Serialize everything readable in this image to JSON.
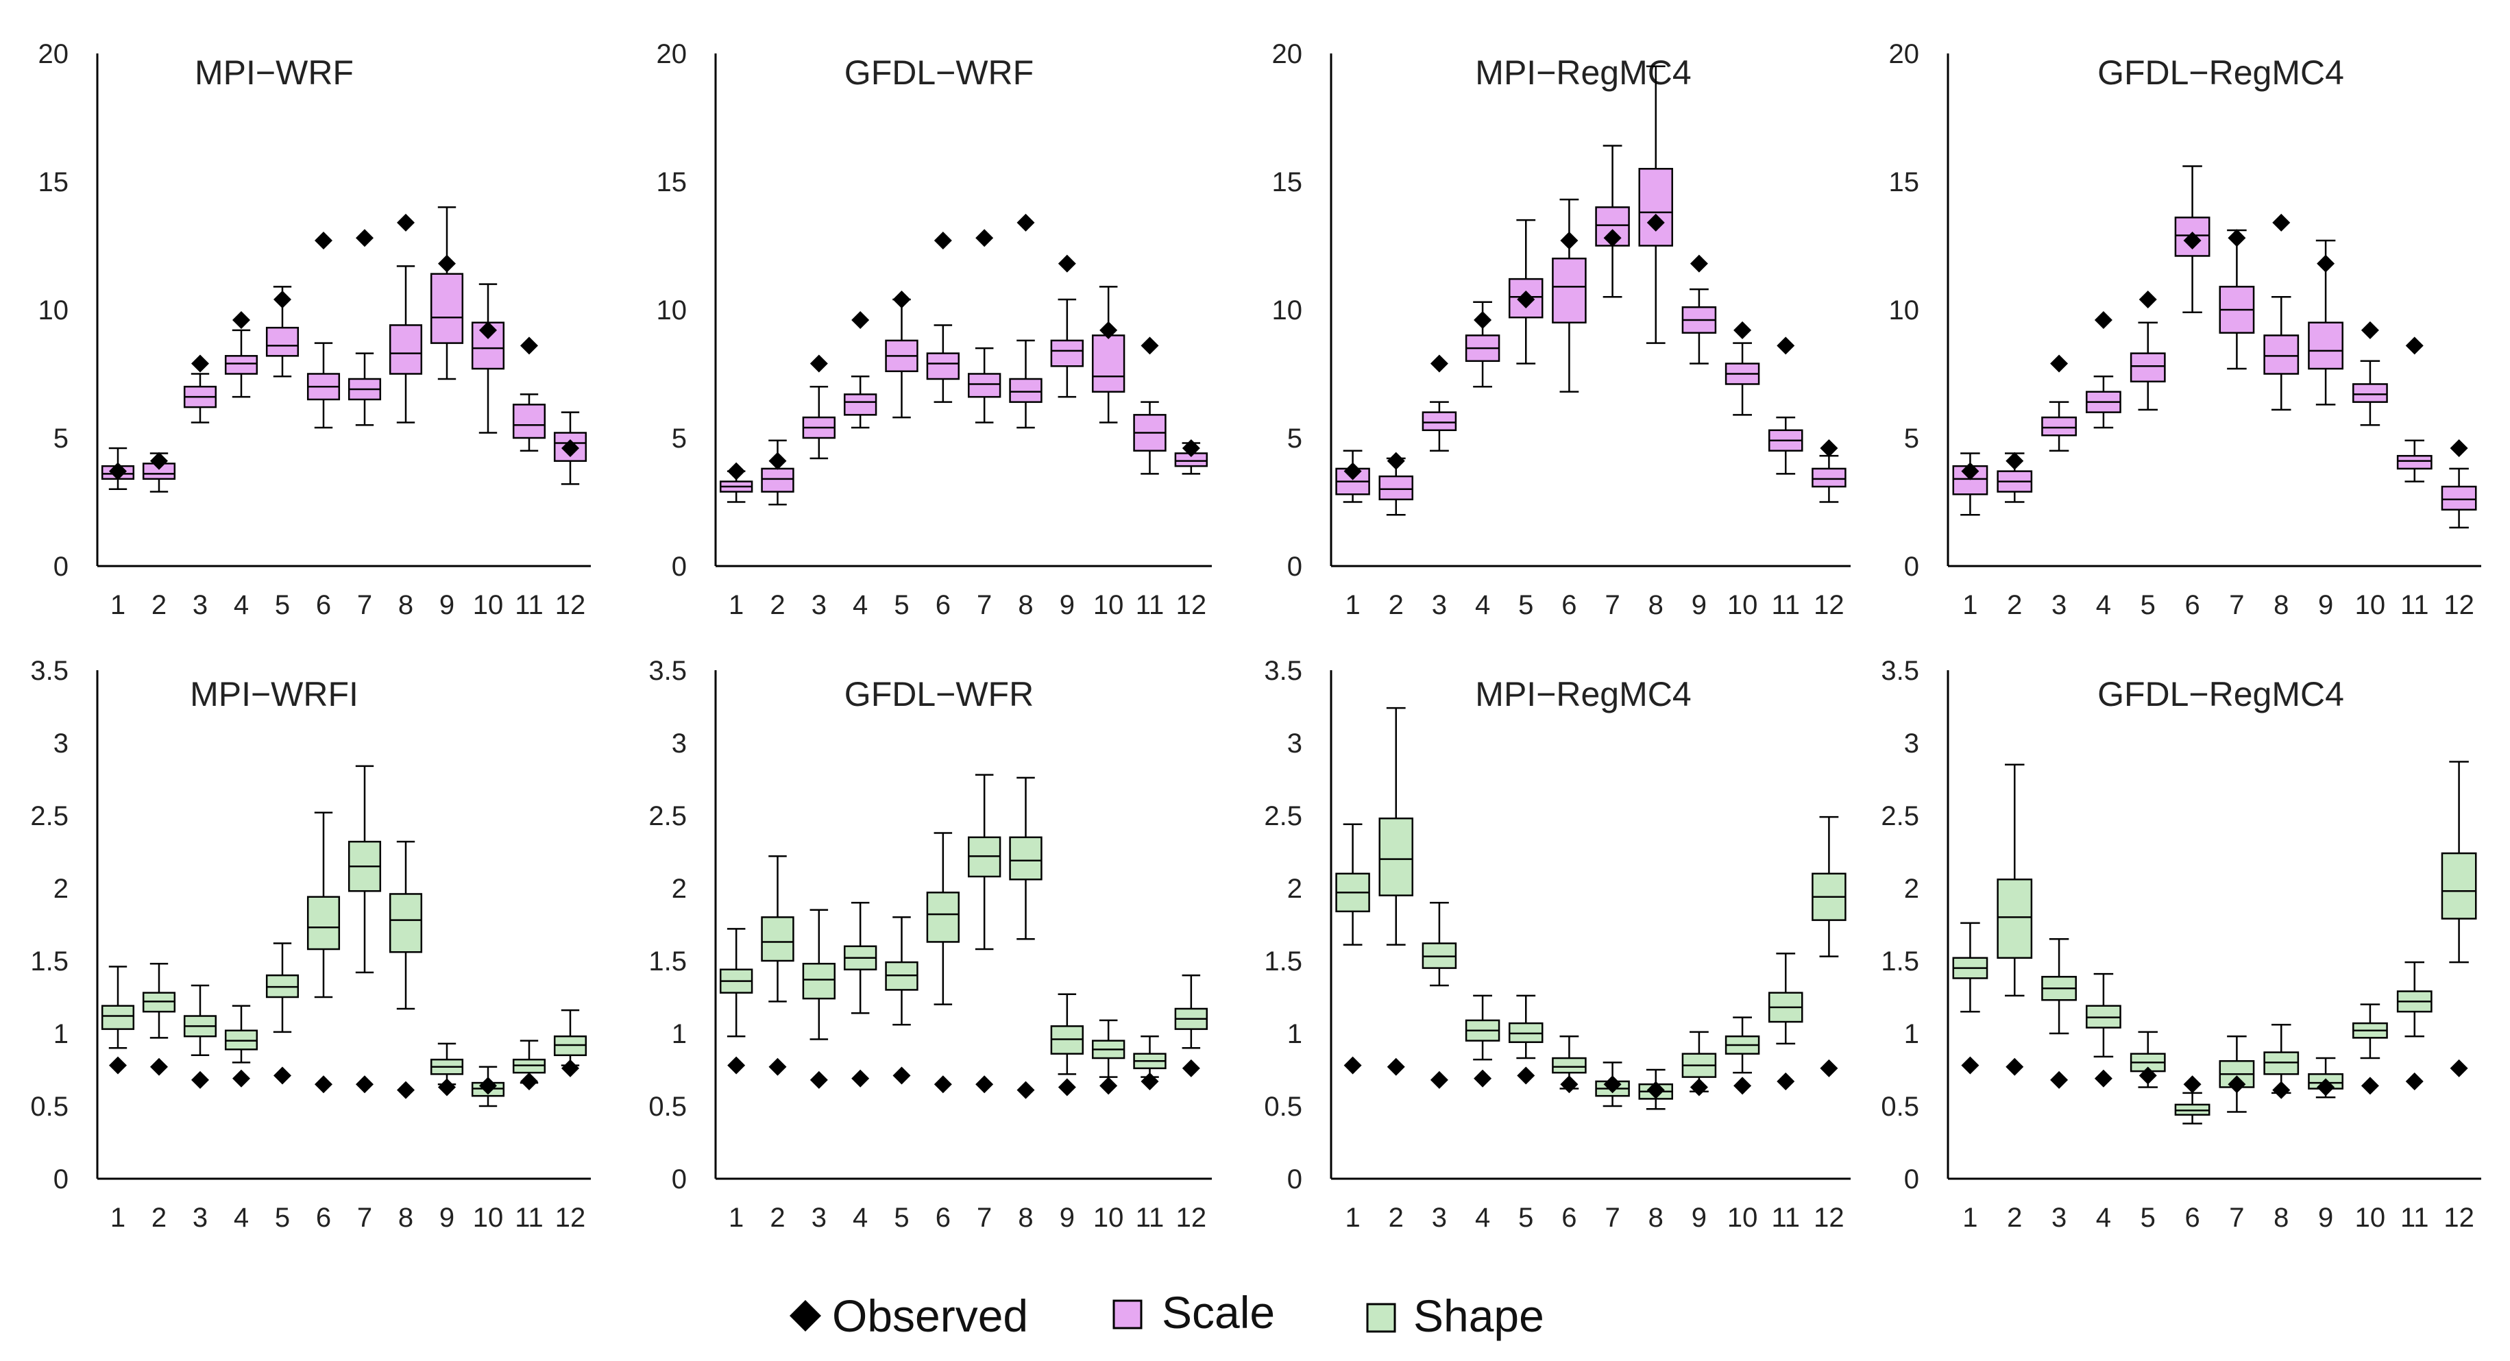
{
  "legend": {
    "observed": "Observed",
    "scale": "Scale",
    "shape": "Shape"
  },
  "colors": {
    "scale_fill": "#e6a8f2",
    "shape_fill": "#c6e8c3",
    "observed": "#000000",
    "axis": "#000000"
  },
  "chart_data": [
    {
      "type": "boxplot",
      "title": "MPI−WRF",
      "parameter": "scale",
      "categories": [
        "1",
        "2",
        "3",
        "4",
        "5",
        "6",
        "7",
        "8",
        "9",
        "10",
        "11",
        "12"
      ],
      "ylim": [
        0,
        20
      ],
      "yticks": [
        "0",
        "5",
        "10",
        "15",
        "20"
      ],
      "boxes": [
        {
          "min": 3.0,
          "q1": 3.4,
          "median": 3.6,
          "q3": 3.9,
          "max": 4.6
        },
        {
          "min": 2.9,
          "q1": 3.4,
          "median": 3.6,
          "q3": 4.0,
          "max": 4.4
        },
        {
          "min": 5.6,
          "q1": 6.2,
          "median": 6.6,
          "q3": 7.0,
          "max": 7.5
        },
        {
          "min": 6.6,
          "q1": 7.5,
          "median": 7.9,
          "q3": 8.2,
          "max": 9.2
        },
        {
          "min": 7.4,
          "q1": 8.2,
          "median": 8.6,
          "q3": 9.3,
          "max": 10.9
        },
        {
          "min": 5.4,
          "q1": 6.5,
          "median": 7.0,
          "q3": 7.5,
          "max": 8.7
        },
        {
          "min": 5.5,
          "q1": 6.5,
          "median": 6.9,
          "q3": 7.3,
          "max": 8.3
        },
        {
          "min": 5.6,
          "q1": 7.5,
          "median": 8.3,
          "q3": 9.4,
          "max": 11.7
        },
        {
          "min": 7.3,
          "q1": 8.7,
          "median": 9.7,
          "q3": 11.4,
          "max": 14.0
        },
        {
          "min": 5.2,
          "q1": 7.7,
          "median": 8.5,
          "q3": 9.5,
          "max": 11.0
        },
        {
          "min": 4.5,
          "q1": 5.0,
          "median": 5.5,
          "q3": 6.3,
          "max": 6.7
        },
        {
          "min": 3.2,
          "q1": 4.1,
          "median": 4.8,
          "q3": 5.2,
          "max": 6.0
        }
      ],
      "observed": [
        3.7,
        4.1,
        7.9,
        9.6,
        10.4,
        12.7,
        12.8,
        13.4,
        11.8,
        9.2,
        8.6,
        4.6
      ]
    },
    {
      "type": "boxplot",
      "title": "GFDL−WRF",
      "parameter": "scale",
      "categories": [
        "1",
        "2",
        "3",
        "4",
        "5",
        "6",
        "7",
        "8",
        "9",
        "10",
        "11",
        "12"
      ],
      "ylim": [
        0,
        20
      ],
      "yticks": [
        "0",
        "5",
        "10",
        "15",
        "20"
      ],
      "boxes": [
        {
          "min": 2.5,
          "q1": 2.9,
          "median": 3.1,
          "q3": 3.3,
          "max": 3.7
        },
        {
          "min": 2.4,
          "q1": 2.9,
          "median": 3.4,
          "q3": 3.8,
          "max": 4.9
        },
        {
          "min": 4.2,
          "q1": 5.0,
          "median": 5.4,
          "q3": 5.8,
          "max": 7.0
        },
        {
          "min": 5.4,
          "q1": 5.9,
          "median": 6.4,
          "q3": 6.7,
          "max": 7.4
        },
        {
          "min": 5.8,
          "q1": 7.6,
          "median": 8.2,
          "q3": 8.8,
          "max": 10.4
        },
        {
          "min": 6.4,
          "q1": 7.3,
          "median": 7.9,
          "q3": 8.3,
          "max": 9.4
        },
        {
          "min": 5.6,
          "q1": 6.6,
          "median": 7.1,
          "q3": 7.5,
          "max": 8.5
        },
        {
          "min": 5.4,
          "q1": 6.4,
          "median": 6.8,
          "q3": 7.3,
          "max": 8.8
        },
        {
          "min": 6.6,
          "q1": 7.8,
          "median": 8.4,
          "q3": 8.8,
          "max": 10.4
        },
        {
          "min": 5.6,
          "q1": 6.8,
          "median": 7.4,
          "q3": 9.0,
          "max": 10.9
        },
        {
          "min": 3.6,
          "q1": 4.5,
          "median": 5.2,
          "q3": 5.9,
          "max": 6.4
        },
        {
          "min": 3.6,
          "q1": 3.9,
          "median": 4.1,
          "q3": 4.4,
          "max": 4.8
        }
      ],
      "observed": [
        3.7,
        4.1,
        7.9,
        9.6,
        10.4,
        12.7,
        12.8,
        13.4,
        11.8,
        9.2,
        8.6,
        4.6
      ]
    },
    {
      "type": "boxplot",
      "title": "MPI−RegMC4",
      "parameter": "scale",
      "categories": [
        "1",
        "2",
        "3",
        "4",
        "5",
        "6",
        "7",
        "8",
        "9",
        "10",
        "11",
        "12"
      ],
      "ylim": [
        0,
        20
      ],
      "yticks": [
        "0",
        "5",
        "10",
        "15",
        "20"
      ],
      "boxes": [
        {
          "min": 2.5,
          "q1": 2.8,
          "median": 3.3,
          "q3": 3.8,
          "max": 4.5
        },
        {
          "min": 2.0,
          "q1": 2.6,
          "median": 3.0,
          "q3": 3.5,
          "max": 4.2
        },
        {
          "min": 4.5,
          "q1": 5.3,
          "median": 5.6,
          "q3": 6.0,
          "max": 6.4
        },
        {
          "min": 7.0,
          "q1": 8.0,
          "median": 8.5,
          "q3": 9.0,
          "max": 10.3
        },
        {
          "min": 7.9,
          "q1": 9.7,
          "median": 10.5,
          "q3": 11.2,
          "max": 13.5
        },
        {
          "min": 6.8,
          "q1": 9.5,
          "median": 10.9,
          "q3": 12.0,
          "max": 14.3
        },
        {
          "min": 10.5,
          "q1": 12.5,
          "median": 13.3,
          "q3": 14.0,
          "max": 16.4
        },
        {
          "min": 8.7,
          "q1": 12.5,
          "median": 13.8,
          "q3": 15.5,
          "max": 19.5
        },
        {
          "min": 7.9,
          "q1": 9.1,
          "median": 9.6,
          "q3": 10.1,
          "max": 10.8
        },
        {
          "min": 5.9,
          "q1": 7.1,
          "median": 7.5,
          "q3": 7.9,
          "max": 8.7
        },
        {
          "min": 3.6,
          "q1": 4.5,
          "median": 4.9,
          "q3": 5.3,
          "max": 5.8
        },
        {
          "min": 2.5,
          "q1": 3.1,
          "median": 3.4,
          "q3": 3.8,
          "max": 4.3
        }
      ],
      "observed": [
        3.7,
        4.1,
        7.9,
        9.6,
        10.4,
        12.7,
        12.8,
        13.4,
        11.8,
        9.2,
        8.6,
        4.6
      ]
    },
    {
      "type": "boxplot",
      "title": "GFDL−RegMC4",
      "parameter": "scale",
      "categories": [
        "1",
        "2",
        "3",
        "4",
        "5",
        "6",
        "7",
        "8",
        "9",
        "10",
        "11",
        "12"
      ],
      "ylim": [
        0,
        20
      ],
      "yticks": [
        "0",
        "5",
        "10",
        "15",
        "20"
      ],
      "boxes": [
        {
          "min": 2.0,
          "q1": 2.8,
          "median": 3.4,
          "q3": 3.9,
          "max": 4.4
        },
        {
          "min": 2.5,
          "q1": 2.9,
          "median": 3.3,
          "q3": 3.7,
          "max": 4.4
        },
        {
          "min": 4.5,
          "q1": 5.1,
          "median": 5.4,
          "q3": 5.8,
          "max": 6.4
        },
        {
          "min": 5.4,
          "q1": 6.0,
          "median": 6.4,
          "q3": 6.8,
          "max": 7.4
        },
        {
          "min": 6.1,
          "q1": 7.2,
          "median": 7.8,
          "q3": 8.3,
          "max": 9.5
        },
        {
          "min": 9.9,
          "q1": 12.1,
          "median": 12.9,
          "q3": 13.6,
          "max": 15.6
        },
        {
          "min": 7.7,
          "q1": 9.1,
          "median": 10.0,
          "q3": 10.9,
          "max": 13.1
        },
        {
          "min": 6.1,
          "q1": 7.5,
          "median": 8.2,
          "q3": 9.0,
          "max": 10.5
        },
        {
          "min": 6.3,
          "q1": 7.7,
          "median": 8.4,
          "q3": 9.5,
          "max": 12.7
        },
        {
          "min": 5.5,
          "q1": 6.4,
          "median": 6.7,
          "q3": 7.1,
          "max": 8.0
        },
        {
          "min": 3.3,
          "q1": 3.8,
          "median": 4.1,
          "q3": 4.3,
          "max": 4.9
        },
        {
          "min": 1.5,
          "q1": 2.2,
          "median": 2.6,
          "q3": 3.1,
          "max": 3.8
        }
      ],
      "observed": [
        3.7,
        4.1,
        7.9,
        9.6,
        10.4,
        12.7,
        12.8,
        13.4,
        11.8,
        9.2,
        8.6,
        4.6
      ]
    },
    {
      "type": "boxplot",
      "title": "MPI−WRFI",
      "parameter": "shape",
      "categories": [
        "1",
        "2",
        "3",
        "4",
        "5",
        "6",
        "7",
        "8",
        "9",
        "10",
        "11",
        "12"
      ],
      "ylim": [
        0,
        3.5
      ],
      "yticks": [
        "0",
        "0.5",
        "1",
        "1.5",
        "2",
        "2.5",
        "3",
        "3.5"
      ],
      "boxes": [
        {
          "min": 0.9,
          "q1": 1.03,
          "median": 1.12,
          "q3": 1.19,
          "max": 1.46
        },
        {
          "min": 0.97,
          "q1": 1.15,
          "median": 1.22,
          "q3": 1.28,
          "max": 1.48
        },
        {
          "min": 0.85,
          "q1": 0.98,
          "median": 1.05,
          "q3": 1.12,
          "max": 1.33
        },
        {
          "min": 0.8,
          "q1": 0.89,
          "median": 0.95,
          "q3": 1.02,
          "max": 1.19
        },
        {
          "min": 1.01,
          "q1": 1.25,
          "median": 1.32,
          "q3": 1.4,
          "max": 1.62
        },
        {
          "min": 1.25,
          "q1": 1.58,
          "median": 1.73,
          "q3": 1.94,
          "max": 2.52
        },
        {
          "min": 1.42,
          "q1": 1.98,
          "median": 2.15,
          "q3": 2.32,
          "max": 2.84
        },
        {
          "min": 1.17,
          "q1": 1.56,
          "median": 1.78,
          "q3": 1.96,
          "max": 2.32
        },
        {
          "min": 0.65,
          "q1": 0.72,
          "median": 0.77,
          "q3": 0.82,
          "max": 0.93
        },
        {
          "min": 0.5,
          "q1": 0.57,
          "median": 0.62,
          "q3": 0.66,
          "max": 0.77
        },
        {
          "min": 0.66,
          "q1": 0.73,
          "median": 0.78,
          "q3": 0.82,
          "max": 0.95
        },
        {
          "min": 0.78,
          "q1": 0.85,
          "median": 0.92,
          "q3": 0.98,
          "max": 1.16
        }
      ],
      "observed": [
        0.78,
        0.77,
        0.68,
        0.69,
        0.71,
        0.65,
        0.65,
        0.61,
        0.63,
        0.64,
        0.67,
        0.76
      ]
    },
    {
      "type": "boxplot",
      "title": "GFDL−WFR",
      "parameter": "shape",
      "categories": [
        "1",
        "2",
        "3",
        "4",
        "5",
        "6",
        "7",
        "8",
        "9",
        "10",
        "11",
        "12"
      ],
      "ylim": [
        0,
        3.5
      ],
      "yticks": [
        "0",
        "0.5",
        "1",
        "1.5",
        "2",
        "2.5",
        "3",
        "3.5"
      ],
      "boxes": [
        {
          "min": 0.98,
          "q1": 1.28,
          "median": 1.36,
          "q3": 1.44,
          "max": 1.72
        },
        {
          "min": 1.22,
          "q1": 1.5,
          "median": 1.63,
          "q3": 1.8,
          "max": 2.22
        },
        {
          "min": 0.96,
          "q1": 1.24,
          "median": 1.37,
          "q3": 1.48,
          "max": 1.85
        },
        {
          "min": 1.14,
          "q1": 1.44,
          "median": 1.52,
          "q3": 1.6,
          "max": 1.9
        },
        {
          "min": 1.06,
          "q1": 1.3,
          "median": 1.4,
          "q3": 1.49,
          "max": 1.8
        },
        {
          "min": 1.2,
          "q1": 1.63,
          "median": 1.82,
          "q3": 1.97,
          "max": 2.38
        },
        {
          "min": 1.58,
          "q1": 2.08,
          "median": 2.22,
          "q3": 2.35,
          "max": 2.78
        },
        {
          "min": 1.65,
          "q1": 2.06,
          "median": 2.19,
          "q3": 2.35,
          "max": 2.76
        },
        {
          "min": 0.72,
          "q1": 0.86,
          "median": 0.96,
          "q3": 1.05,
          "max": 1.27
        },
        {
          "min": 0.7,
          "q1": 0.83,
          "median": 0.89,
          "q3": 0.95,
          "max": 1.09
        },
        {
          "min": 0.7,
          "q1": 0.76,
          "median": 0.81,
          "q3": 0.86,
          "max": 0.98
        },
        {
          "min": 0.9,
          "q1": 1.03,
          "median": 1.1,
          "q3": 1.17,
          "max": 1.4
        }
      ],
      "observed": [
        0.78,
        0.77,
        0.68,
        0.69,
        0.71,
        0.65,
        0.65,
        0.61,
        0.63,
        0.64,
        0.67,
        0.76
      ]
    },
    {
      "type": "boxplot",
      "title": "MPI−RegMC4",
      "parameter": "shape",
      "categories": [
        "1",
        "2",
        "3",
        "4",
        "5",
        "6",
        "7",
        "8",
        "9",
        "10",
        "11",
        "12"
      ],
      "ylim": [
        0,
        3.5
      ],
      "yticks": [
        "0",
        "0.5",
        "1",
        "1.5",
        "2",
        "2.5",
        "3",
        "3.5"
      ],
      "boxes": [
        {
          "min": 1.61,
          "q1": 1.84,
          "median": 1.97,
          "q3": 2.1,
          "max": 2.44
        },
        {
          "min": 1.61,
          "q1": 1.95,
          "median": 2.2,
          "q3": 2.48,
          "max": 3.24
        },
        {
          "min": 1.33,
          "q1": 1.45,
          "median": 1.53,
          "q3": 1.62,
          "max": 1.9
        },
        {
          "min": 0.82,
          "q1": 0.95,
          "median": 1.02,
          "q3": 1.09,
          "max": 1.26
        },
        {
          "min": 0.83,
          "q1": 0.94,
          "median": 1.0,
          "q3": 1.07,
          "max": 1.26
        },
        {
          "min": 0.62,
          "q1": 0.73,
          "median": 0.77,
          "q3": 0.83,
          "max": 0.98
        },
        {
          "min": 0.5,
          "q1": 0.57,
          "median": 0.62,
          "q3": 0.67,
          "max": 0.8
        },
        {
          "min": 0.48,
          "q1": 0.55,
          "median": 0.6,
          "q3": 0.65,
          "max": 0.75
        },
        {
          "min": 0.6,
          "q1": 0.7,
          "median": 0.78,
          "q3": 0.86,
          "max": 1.01
        },
        {
          "min": 0.73,
          "q1": 0.86,
          "median": 0.92,
          "q3": 0.98,
          "max": 1.11
        },
        {
          "min": 0.93,
          "q1": 1.08,
          "median": 1.18,
          "q3": 1.28,
          "max": 1.55
        },
        {
          "min": 1.53,
          "q1": 1.78,
          "median": 1.94,
          "q3": 2.1,
          "max": 2.49
        }
      ],
      "observed": [
        0.78,
        0.77,
        0.68,
        0.69,
        0.71,
        0.65,
        0.65,
        0.61,
        0.63,
        0.64,
        0.67,
        0.76
      ]
    },
    {
      "type": "boxplot",
      "title": "GFDL−RegMC4",
      "parameter": "shape",
      "categories": [
        "1",
        "2",
        "3",
        "4",
        "5",
        "6",
        "7",
        "8",
        "9",
        "10",
        "11",
        "12"
      ],
      "ylim": [
        0,
        3.5
      ],
      "yticks": [
        "0",
        "0.5",
        "1",
        "1.5",
        "2",
        "2.5",
        "3",
        "3.5"
      ],
      "boxes": [
        {
          "min": 1.15,
          "q1": 1.38,
          "median": 1.45,
          "q3": 1.52,
          "max": 1.76
        },
        {
          "min": 1.26,
          "q1": 1.52,
          "median": 1.8,
          "q3": 2.06,
          "max": 2.85
        },
        {
          "min": 1.0,
          "q1": 1.23,
          "median": 1.31,
          "q3": 1.39,
          "max": 1.65
        },
        {
          "min": 0.84,
          "q1": 1.04,
          "median": 1.11,
          "q3": 1.19,
          "max": 1.41
        },
        {
          "min": 0.63,
          "q1": 0.74,
          "median": 0.8,
          "q3": 0.86,
          "max": 1.01
        },
        {
          "min": 0.38,
          "q1": 0.44,
          "median": 0.47,
          "q3": 0.51,
          "max": 0.59
        },
        {
          "min": 0.46,
          "q1": 0.63,
          "median": 0.72,
          "q3": 0.81,
          "max": 0.98
        },
        {
          "min": 0.59,
          "q1": 0.72,
          "median": 0.8,
          "q3": 0.87,
          "max": 1.06
        },
        {
          "min": 0.56,
          "q1": 0.62,
          "median": 0.66,
          "q3": 0.72,
          "max": 0.83
        },
        {
          "min": 0.83,
          "q1": 0.97,
          "median": 1.02,
          "q3": 1.07,
          "max": 1.2
        },
        {
          "min": 0.98,
          "q1": 1.15,
          "median": 1.22,
          "q3": 1.29,
          "max": 1.49
        },
        {
          "min": 1.49,
          "q1": 1.79,
          "median": 1.98,
          "q3": 2.24,
          "max": 2.87
        }
      ],
      "observed": [
        0.78,
        0.77,
        0.68,
        0.69,
        0.71,
        0.65,
        0.65,
        0.61,
        0.63,
        0.64,
        0.67,
        0.76
      ]
    }
  ]
}
